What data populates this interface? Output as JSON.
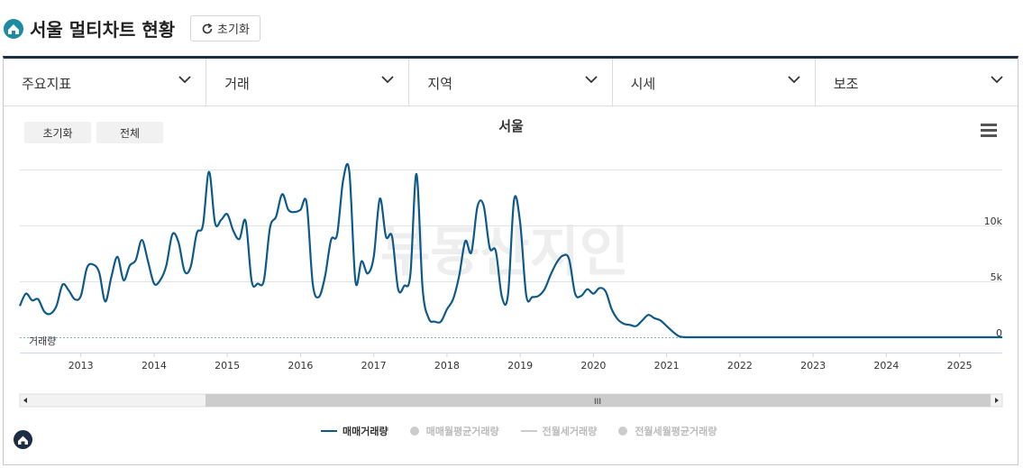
{
  "header": {
    "title": "서울 멀티차트 현황",
    "reset_label": "초기화"
  },
  "filters": [
    {
      "label": "주요지표"
    },
    {
      "label": "거래"
    },
    {
      "label": "지역"
    },
    {
      "label": "시세"
    },
    {
      "label": "보조"
    }
  ],
  "chart_controls": {
    "reset_label": "초기화",
    "all_label": "전체"
  },
  "watermark": "부동산지인",
  "chart_data": {
    "type": "line",
    "title": "서울",
    "ylabel": "거래량",
    "yticks": [
      "0",
      "5k",
      "10k"
    ],
    "ylim": [
      0,
      15000
    ],
    "xticks": [
      "2013",
      "2014",
      "2015",
      "2016",
      "2017",
      "2018",
      "2019",
      "2020",
      "2021",
      "2022",
      "2023",
      "2024",
      "2025"
    ],
    "xlim": [
      "2012-03",
      "2025-08"
    ],
    "grid": true,
    "series": [
      {
        "name": "매매거래량",
        "color": "#0d5a8a",
        "x": [
          "2012-03",
          "2012-04",
          "2012-05",
          "2012-06",
          "2012-07",
          "2012-08",
          "2012-09",
          "2012-10",
          "2012-11",
          "2012-12",
          "2013-01",
          "2013-02",
          "2013-03",
          "2013-04",
          "2013-05",
          "2013-06",
          "2013-07",
          "2013-08",
          "2013-09",
          "2013-10",
          "2013-11",
          "2013-12",
          "2014-01",
          "2014-02",
          "2014-03",
          "2014-04",
          "2014-05",
          "2014-06",
          "2014-07",
          "2014-08",
          "2014-09",
          "2014-10",
          "2014-11",
          "2014-12",
          "2015-01",
          "2015-02",
          "2015-03",
          "2015-04",
          "2015-05",
          "2015-06",
          "2015-07",
          "2015-08",
          "2015-09",
          "2015-10",
          "2015-11",
          "2015-12",
          "2016-01",
          "2016-02",
          "2016-03",
          "2016-04",
          "2016-05",
          "2016-06",
          "2016-07",
          "2016-08",
          "2016-09",
          "2016-10",
          "2016-11",
          "2016-12",
          "2017-01",
          "2017-02",
          "2017-03",
          "2017-04",
          "2017-05",
          "2017-06",
          "2017-07",
          "2017-08",
          "2017-09",
          "2017-10",
          "2017-11",
          "2017-12",
          "2018-01",
          "2018-02",
          "2018-03",
          "2018-04",
          "2018-05",
          "2018-06",
          "2018-07",
          "2018-08",
          "2018-09",
          "2018-10",
          "2018-11",
          "2018-12",
          "2019-01",
          "2019-02",
          "2019-03",
          "2019-04",
          "2019-05",
          "2019-06",
          "2019-07",
          "2019-08",
          "2019-09",
          "2019-10",
          "2019-11",
          "2019-12",
          "2020-01",
          "2020-02",
          "2020-03",
          "2020-04",
          "2020-05",
          "2020-06",
          "2020-07",
          "2020-08",
          "2020-09",
          "2020-10",
          "2020-11",
          "2020-12",
          "2021-01",
          "2021-02",
          "2021-03",
          "2021-04",
          "2021-05",
          "2021-06",
          "2021-07",
          "2021-08",
          "2021-09",
          "2021-10",
          "2021-11",
          "2021-12",
          "2022-01",
          "2022-02",
          "2022-03",
          "2022-04",
          "2022-05",
          "2022-06",
          "2022-07",
          "2022-08",
          "2022-09",
          "2023-06",
          "2024-06",
          "2025-08"
        ],
        "values": [
          2800,
          3900,
          3300,
          3400,
          2300,
          2100,
          2800,
          4700,
          4200,
          3400,
          3700,
          6200,
          6500,
          5800,
          3200,
          5400,
          7200,
          5100,
          6400,
          6900,
          8700,
          6800,
          4800,
          5100,
          6400,
          9200,
          8500,
          5900,
          6300,
          9300,
          10000,
          14800,
          10200,
          10500,
          11000,
          9500,
          8800,
          10400,
          5000,
          4800,
          5100,
          9800,
          10800,
          12800,
          11400,
          11200,
          11400,
          12000,
          4800,
          3600,
          5400,
          8700,
          9200,
          14100,
          14800,
          5000,
          6800,
          5700,
          7200,
          12400,
          9000,
          9000,
          4300,
          4600,
          5600,
          14600,
          4400,
          1700,
          1400,
          1400,
          2500,
          3400,
          5500,
          8600,
          7600,
          11700,
          11800,
          8000,
          7700,
          3600,
          3800,
          12300,
          10200,
          3700,
          3600,
          3700,
          4300,
          5600,
          6700,
          7300,
          7000,
          3900,
          3700,
          4300,
          3900,
          4400,
          4100,
          2500,
          1600,
          1200,
          1100,
          1000,
          1500,
          2000,
          1700,
          1500,
          1000,
          500,
          100,
          0,
          0,
          0,
          0,
          0,
          0,
          0,
          0,
          0,
          0,
          0,
          0,
          0,
          0,
          0,
          0,
          0,
          0,
          0,
          0,
          0
        ]
      }
    ]
  },
  "scrollbar": {
    "thumb_label": "III"
  },
  "legend": [
    {
      "label": "매매거래량",
      "color": "#0d5a8a",
      "marker": "line",
      "active": true
    },
    {
      "label": "매매월평균거래량",
      "color": "#cccccc",
      "marker": "dot",
      "active": false
    },
    {
      "label": "전월세거래량",
      "color": "#cccccc",
      "marker": "line",
      "active": false
    },
    {
      "label": "전월세월평균거래량",
      "color": "#cccccc",
      "marker": "dot",
      "active": false
    }
  ]
}
